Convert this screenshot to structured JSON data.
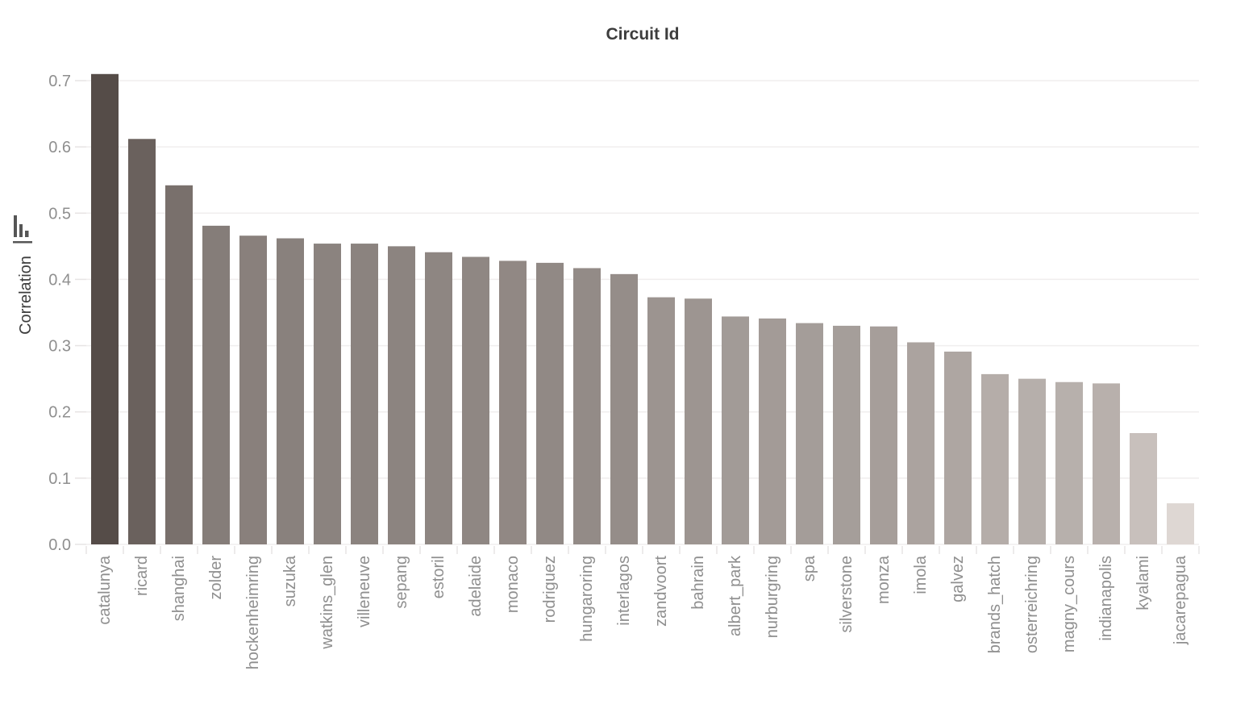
{
  "chart_data": {
    "type": "bar",
    "title": "Circuit Id",
    "xlabel": "",
    "ylabel": "Correlation",
    "ylabel_icon": "mini-bar-chart-icon",
    "legend": "none",
    "grid": "horizontal",
    "ylim": [
      0.0,
      0.74
    ],
    "yticks": [
      0.0,
      0.1,
      0.2,
      0.3,
      0.4,
      0.5,
      0.6,
      0.7
    ],
    "ytick_labels": [
      "0.0",
      "0.1",
      "0.2",
      "0.3",
      "0.4",
      "0.5",
      "0.6",
      "0.7"
    ],
    "categories": [
      "catalunya",
      "ricard",
      "shanghai",
      "zolder",
      "hockenheimring",
      "suzuka",
      "watkins_glen",
      "villeneuve",
      "sepang",
      "estoril",
      "adelaide",
      "monaco",
      "rodriguez",
      "hungaroring",
      "interlagos",
      "zandvoort",
      "bahrain",
      "albert_park",
      "nurburgring",
      "spa",
      "silverstone",
      "monza",
      "imola",
      "galvez",
      "brands_hatch",
      "osterreichring",
      "magny_cours",
      "indianapolis",
      "kyalami",
      "jacarepagua"
    ],
    "values": [
      0.71,
      0.612,
      0.542,
      0.481,
      0.466,
      0.462,
      0.454,
      0.454,
      0.45,
      0.441,
      0.434,
      0.428,
      0.425,
      0.417,
      0.408,
      0.373,
      0.371,
      0.344,
      0.341,
      0.334,
      0.33,
      0.329,
      0.305,
      0.291,
      0.257,
      0.25,
      0.245,
      0.243,
      0.168,
      0.062
    ],
    "color_value_domain": [
      0.71,
      0.062
    ],
    "style": {
      "background": "#ffffff",
      "bar_color_at_max": "#554c48",
      "bar_color_at_min": "#ded7d3",
      "grid_color": "#f0eeee",
      "tick_mark_color": "#e7e4e4",
      "tick_label_color": "#8f8f8f",
      "title_color": "#3d3d3d",
      "axis_label_color": "#3d3d3d",
      "icon_color": "#565656"
    }
  }
}
